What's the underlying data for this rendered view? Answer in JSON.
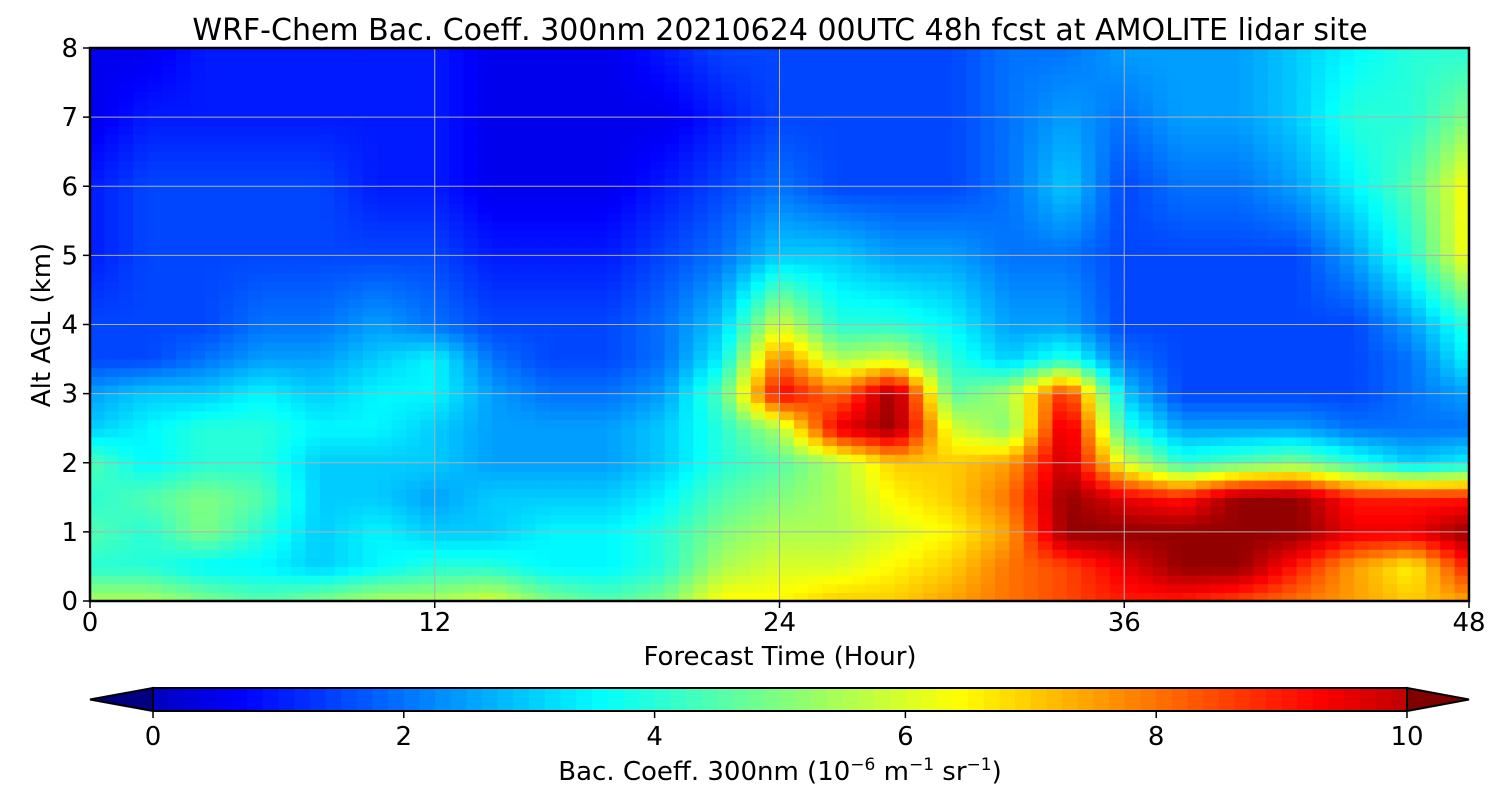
{
  "chart_data": {
    "type": "heatmap",
    "title": "WRF-Chem Bac. Coeff. 300nm  20210624 00UTC 48h fcst at AMOLITE lidar site",
    "xlabel": "Forecast Time (Hour)",
    "ylabel": "Alt AGL (km)",
    "xlim": [
      0,
      48
    ],
    "ylim": [
      0,
      8
    ],
    "x_ticks": [
      "0",
      "12",
      "24",
      "36",
      "48"
    ],
    "y_ticks": [
      "0",
      "1",
      "2",
      "3",
      "4",
      "5",
      "6",
      "7",
      "8"
    ],
    "grid": true,
    "colorscale": "jet",
    "colorbar": {
      "label_prefix": "Bac. Coeff. 300nm  (10",
      "label_exp1": "−6",
      "label_mid": " m",
      "label_exp2": "−1",
      "label_mid2": " sr",
      "label_exp3": "−1",
      "label_suffix": ")",
      "range": [
        0,
        10
      ],
      "ticks": [
        "0",
        "2",
        "4",
        "6",
        "8",
        "10"
      ],
      "extend": "both"
    },
    "x": [
      0,
      2,
      4,
      6,
      8,
      10,
      12,
      14,
      16,
      18,
      20,
      22,
      24,
      26,
      28,
      30,
      32,
      34,
      36,
      38,
      40,
      42,
      44,
      46,
      48
    ],
    "y": [
      0,
      0.5,
      1,
      1.5,
      2,
      2.5,
      3,
      3.5,
      4,
      5,
      6,
      7,
      8
    ],
    "z": [
      [
        5.5,
        5.5,
        5.0,
        4.5,
        5.0,
        5.5,
        5.5,
        6.0,
        5.0,
        4.5,
        5.0,
        6.5,
        6.5,
        7.0,
        7.0,
        7.5,
        8.0,
        8.5,
        9.0,
        9.0,
        8.5,
        8.0,
        7.5,
        7.0,
        7.5
      ],
      [
        4.0,
        4.0,
        3.5,
        3.5,
        3.0,
        3.5,
        4.0,
        4.0,
        3.5,
        3.5,
        4.0,
        5.5,
        6.0,
        6.0,
        6.5,
        7.0,
        8.0,
        8.5,
        9.5,
        10.5,
        10.5,
        9.0,
        7.5,
        6.5,
        9.0
      ],
      [
        4.5,
        4.0,
        5.0,
        4.0,
        3.0,
        3.5,
        3.0,
        3.0,
        3.5,
        3.5,
        4.0,
        5.0,
        5.5,
        5.5,
        6.0,
        6.5,
        7.5,
        10.5,
        10.5,
        10.5,
        10.5,
        10.5,
        9.5,
        9.5,
        10.5
      ],
      [
        4.0,
        4.5,
        5.0,
        4.5,
        3.0,
        3.0,
        2.5,
        3.0,
        3.0,
        3.0,
        3.5,
        4.5,
        5.0,
        5.5,
        6.5,
        7.0,
        8.0,
        10.5,
        9.5,
        9.0,
        10.5,
        10.5,
        9.0,
        9.0,
        9.0
      ],
      [
        4.5,
        3.5,
        4.0,
        4.0,
        3.0,
        3.0,
        3.0,
        2.5,
        2.5,
        2.5,
        3.0,
        4.0,
        4.5,
        5.5,
        7.0,
        7.0,
        7.5,
        10.0,
        6.0,
        4.0,
        4.5,
        5.0,
        4.0,
        3.0,
        3.5
      ],
      [
        3.0,
        3.5,
        4.0,
        4.0,
        3.5,
        3.5,
        3.0,
        2.5,
        2.5,
        2.5,
        3.0,
        4.0,
        5.5,
        9.5,
        10.5,
        6.0,
        5.0,
        10.0,
        4.0,
        2.5,
        2.5,
        2.5,
        2.0,
        2.0,
        2.0
      ],
      [
        2.5,
        3.0,
        3.0,
        3.5,
        3.0,
        3.5,
        3.5,
        2.5,
        2.0,
        2.0,
        2.5,
        4.5,
        9.5,
        8.0,
        10.5,
        4.5,
        5.5,
        9.0,
        3.0,
        1.5,
        1.5,
        1.5,
        1.5,
        2.0,
        2.5
      ],
      [
        1.5,
        1.5,
        2.0,
        2.5,
        2.5,
        3.0,
        3.5,
        2.0,
        1.5,
        1.5,
        2.0,
        3.5,
        8.0,
        5.5,
        6.0,
        4.0,
        3.0,
        4.0,
        2.0,
        1.5,
        1.5,
        1.5,
        1.5,
        2.0,
        3.5
      ],
      [
        1.5,
        1.5,
        1.5,
        2.0,
        2.0,
        2.5,
        2.0,
        1.5,
        1.5,
        1.5,
        2.0,
        3.0,
        6.0,
        4.0,
        4.0,
        3.5,
        2.5,
        2.5,
        1.5,
        1.5,
        1.5,
        1.5,
        1.5,
        2.5,
        4.0
      ],
      [
        1.0,
        1.5,
        1.5,
        1.5,
        1.5,
        1.5,
        1.5,
        1.0,
        1.0,
        1.0,
        1.5,
        2.0,
        3.0,
        3.0,
        2.5,
        2.5,
        2.0,
        2.0,
        1.5,
        1.5,
        1.5,
        1.5,
        2.5,
        4.0,
        6.5
      ],
      [
        1.0,
        1.5,
        1.5,
        1.5,
        1.5,
        1.0,
        1.0,
        0.5,
        0.5,
        0.5,
        1.0,
        1.5,
        2.0,
        1.5,
        1.5,
        1.5,
        2.0,
        3.0,
        1.5,
        2.0,
        2.0,
        2.5,
        3.5,
        4.5,
        6.5
      ],
      [
        0.5,
        1.0,
        1.0,
        1.0,
        1.0,
        1.0,
        1.0,
        0.5,
        0.5,
        0.5,
        0.5,
        1.0,
        1.5,
        1.5,
        1.5,
        1.5,
        2.0,
        2.5,
        2.0,
        2.5,
        2.5,
        3.0,
        4.0,
        4.0,
        5.0
      ],
      [
        0.5,
        0.5,
        1.0,
        1.0,
        1.0,
        1.0,
        1.0,
        0.5,
        0.5,
        0.5,
        1.0,
        1.5,
        1.5,
        1.5,
        1.5,
        1.5,
        2.0,
        2.0,
        2.5,
        2.5,
        2.5,
        3.0,
        3.5,
        4.0,
        4.0
      ]
    ]
  }
}
